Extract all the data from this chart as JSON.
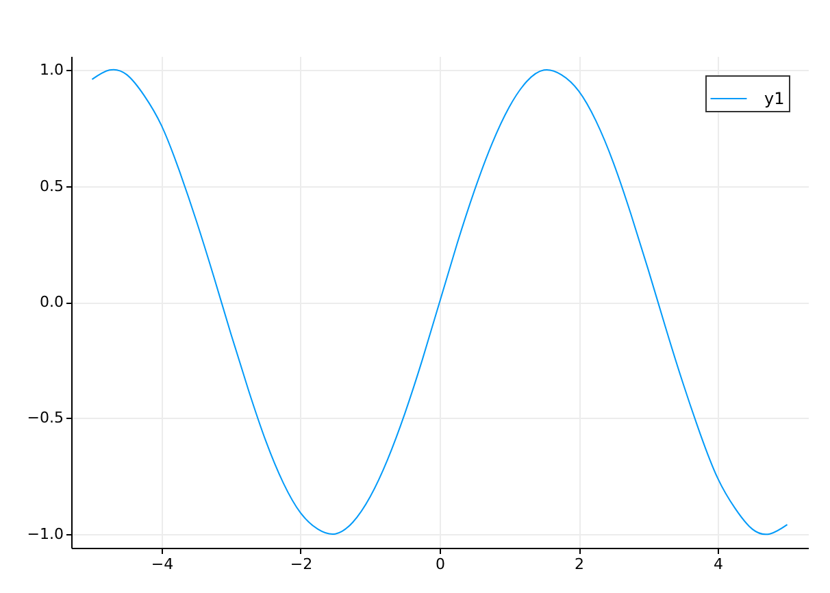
{
  "chart_data": {
    "type": "line",
    "x": [
      -5,
      -4.75,
      -4.5,
      -4.25,
      -4,
      -3.75,
      -3.5,
      -3.25,
      -3,
      -2.75,
      -2.5,
      -2.25,
      -2,
      -1.75,
      -1.5,
      -1.25,
      -1,
      -0.75,
      -0.5,
      -0.25,
      0,
      0.25,
      0.5,
      0.75,
      1,
      1.25,
      1.5,
      1.75,
      2,
      2.25,
      2.5,
      2.75,
      3,
      3.25,
      3.5,
      3.75,
      4,
      4.25,
      4.5,
      4.75,
      5
    ],
    "series": [
      {
        "name": "y1",
        "color": "#009af9",
        "values": [
          0.96,
          1.0,
          0.98,
          0.89,
          0.76,
          0.57,
          0.35,
          0.11,
          -0.14,
          -0.38,
          -0.6,
          -0.78,
          -0.91,
          -0.98,
          -1.0,
          -0.95,
          -0.84,
          -0.68,
          -0.48,
          -0.25,
          0,
          0.25,
          0.48,
          0.68,
          0.84,
          0.95,
          1.0,
          0.98,
          0.91,
          0.78,
          0.6,
          0.38,
          0.14,
          -0.11,
          -0.35,
          -0.57,
          -0.76,
          -0.89,
          -0.98,
          -1.0,
          -0.96
        ]
      }
    ],
    "xlim": [
      -5.3,
      5.3
    ],
    "xticks": [
      -4,
      -2,
      0,
      2,
      4
    ],
    "ylim": [
      -1.06,
      1.06
    ],
    "yticks": [
      {
        "value": -1,
        "label": "−1.0"
      },
      {
        "value": -0.5,
        "label": "−0.5"
      },
      {
        "value": 0,
        "label": "0.0"
      },
      {
        "value": 0.5,
        "label": "0.5"
      },
      {
        "value": 1,
        "label": "1.0"
      }
    ],
    "grid": true,
    "legend": "top right"
  }
}
